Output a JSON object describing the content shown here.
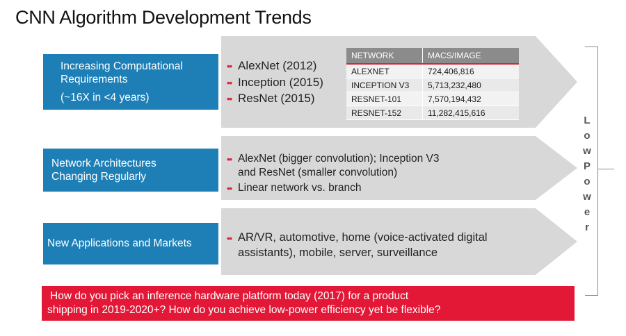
{
  "title": "CNN Algorithm Development Trends",
  "rows": [
    {
      "box_lines": [
        "Increasing Computational",
        "Requirements",
        "(~16X in <4 years)"
      ],
      "bullets": [
        "AlexNet (2012)",
        "Inception (2015)",
        "ResNet (2015)"
      ]
    },
    {
      "box_lines": [
        "Network Architectures",
        "Changing Regularly"
      ],
      "bullets": [
        "AlexNet (bigger convolution); Inception V3",
        "and ResNet (smaller convolution)",
        "Linear network vs. branch"
      ]
    },
    {
      "box_lines": [
        "New Applications and Markets"
      ],
      "bullets": [
        "AR/VR, automotive, home (voice-activated digital",
        "assistants), mobile, server, surveillance"
      ]
    }
  ],
  "table": {
    "headers": [
      "NETWORK",
      "MACS/IMAGE"
    ],
    "rows": [
      [
        "ALEXNET",
        "724,406,816"
      ],
      [
        "INCEPTION V3",
        "5,713,232,480"
      ],
      [
        "RESNET-101",
        "7,570,194,432"
      ],
      [
        "RESNET-152",
        "11,282,415,616"
      ]
    ]
  },
  "side_label": [
    "L",
    "o",
    "w",
    "P",
    "o",
    "w",
    "e",
    "r"
  ],
  "question": {
    "line1": "How do you pick an inference hardware platform today (2017) for a product",
    "line2": "shipping in 2019-2020+?  How do you achieve low-power efficiency yet be flexible?"
  },
  "colors": {
    "blue": "#1e7fb6",
    "red": "#e31837",
    "arrow": "#d8d8d8",
    "bullet": "#d4253b"
  }
}
